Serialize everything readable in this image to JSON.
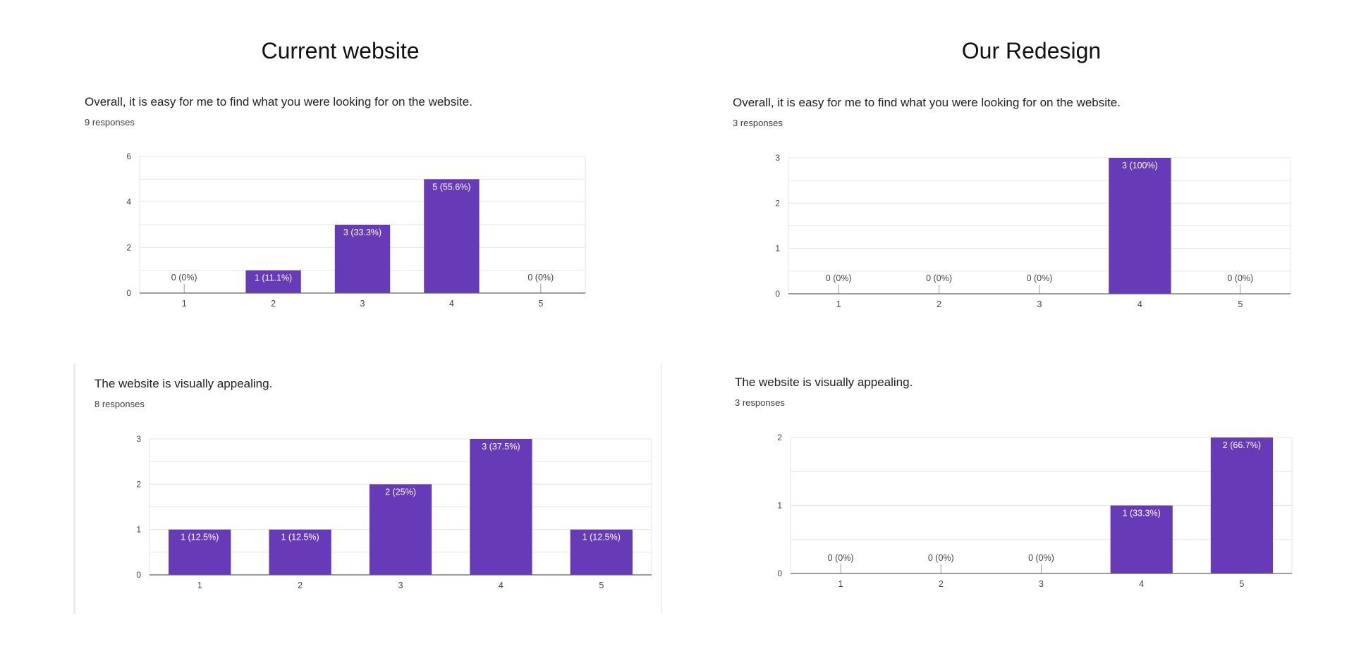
{
  "columns": {
    "left_title": "Current website",
    "right_title": "Our Redesign"
  },
  "colors": {
    "bar": "#673ab7",
    "grid": "#e6e6e6",
    "axis": "#5f6368",
    "label_inside": "#ffffff",
    "label_outside": "#444444"
  },
  "panels": [
    {
      "question": "Overall, it is easy for me to find what you were looking for on the website.",
      "responses": "9 responses"
    },
    {
      "question": "Overall, it is easy for me to find what you were looking for on the website.",
      "responses": "3 responses"
    },
    {
      "question": "The website is visually appealing.",
      "responses": "8 responses"
    },
    {
      "question": "The website is visually appealing.",
      "responses": "3 responses"
    }
  ],
  "chart_data": [
    {
      "type": "bar",
      "group": "Current website",
      "title": "Overall, it is easy for me to find what you were looking for on the website.",
      "categories": [
        "1",
        "2",
        "3",
        "4",
        "5"
      ],
      "values": [
        0,
        1,
        3,
        5,
        0
      ],
      "data_labels": [
        "0 (0%)",
        "1 (11.1%)",
        "3 (33.3%)",
        "5 (55.6%)",
        "0 (0%)"
      ],
      "ylim": [
        0,
        6
      ],
      "yticks": [
        "0",
        "2",
        "4",
        "6"
      ],
      "grid": true
    },
    {
      "type": "bar",
      "group": "Our Redesign",
      "title": "Overall, it is easy for me to find what you were looking for on the website.",
      "categories": [
        "1",
        "2",
        "3",
        "4",
        "5"
      ],
      "values": [
        0,
        0,
        0,
        3,
        0
      ],
      "data_labels": [
        "0 (0%)",
        "0 (0%)",
        "0 (0%)",
        "3 (100%)",
        "0 (0%)"
      ],
      "ylim": [
        0,
        3
      ],
      "yticks": [
        "0",
        "1",
        "2",
        "3"
      ],
      "grid": true
    },
    {
      "type": "bar",
      "group": "Current website",
      "title": "The website is visually appealing.",
      "categories": [
        "1",
        "2",
        "3",
        "4",
        "5"
      ],
      "values": [
        1,
        1,
        2,
        3,
        1
      ],
      "data_labels": [
        "1 (12.5%)",
        "1 (12.5%)",
        "2 (25%)",
        "3 (37.5%)",
        "1 (12.5%)"
      ],
      "ylim": [
        0,
        3
      ],
      "yticks": [
        "0",
        "1",
        "2",
        "3"
      ],
      "grid": true
    },
    {
      "type": "bar",
      "group": "Our Redesign",
      "title": "The website is visually appealing.",
      "categories": [
        "1",
        "2",
        "3",
        "4",
        "5"
      ],
      "values": [
        0,
        0,
        0,
        1,
        2
      ],
      "data_labels": [
        "0 (0%)",
        "0 (0%)",
        "0 (0%)",
        "1 (33.3%)",
        "2 (66.7%)"
      ],
      "ylim": [
        0,
        2
      ],
      "yticks": [
        "0",
        "1",
        "2"
      ],
      "grid": true
    }
  ]
}
